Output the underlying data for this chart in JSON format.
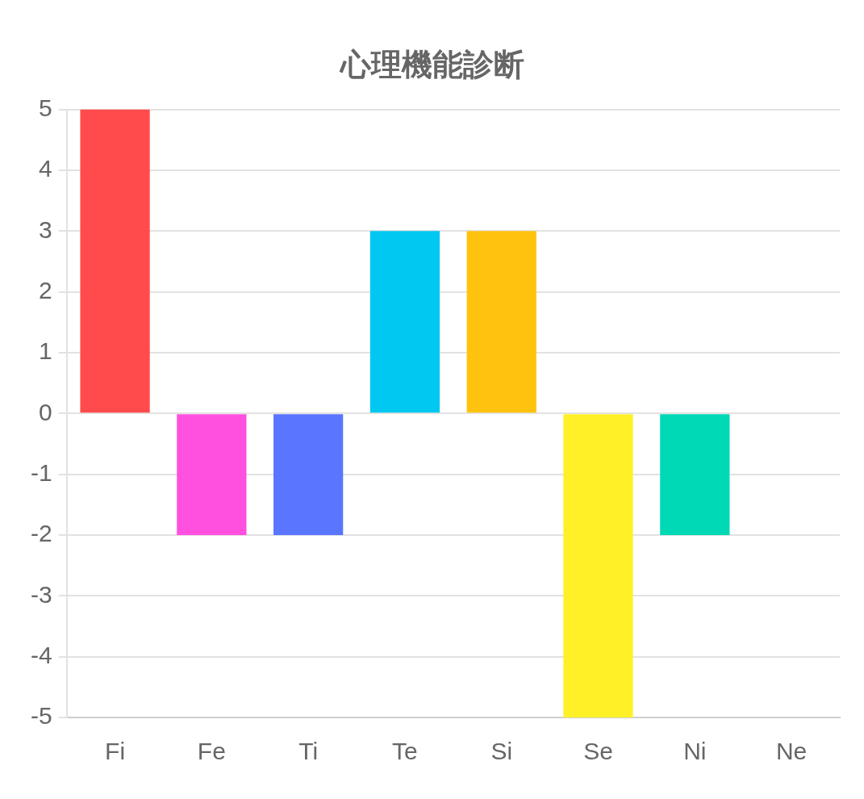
{
  "chart_data": {
    "type": "bar",
    "title": "心理機能診断",
    "categories": [
      "Fi",
      "Fe",
      "Ti",
      "Te",
      "Si",
      "Se",
      "Ni",
      "Ne"
    ],
    "values": [
      5,
      -2,
      -2,
      3,
      3,
      -5,
      -2,
      0
    ],
    "colors": [
      "#ff4b4b",
      "#ff50e0",
      "#5a75ff",
      "#00c8f0",
      "#ffc20e",
      "#fff028",
      "#00d9b5",
      "#8a8a8a"
    ],
    "ylim": [
      -5,
      5
    ],
    "yticks": [
      -5,
      -4,
      -3,
      -2,
      -1,
      0,
      1,
      2,
      3,
      4,
      5
    ],
    "grid": "y"
  }
}
